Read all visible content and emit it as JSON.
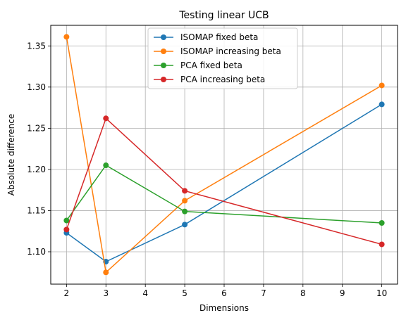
{
  "chart_data": {
    "type": "line",
    "title": "Testing linear UCB",
    "xlabel": "Dimensions",
    "ylabel": "Absolute difference",
    "x": [
      2,
      3,
      5,
      10
    ],
    "xlim": [
      1.6,
      10.4
    ],
    "ylim": [
      1.0607,
      1.375
    ],
    "xticks": [
      2,
      3,
      4,
      5,
      6,
      7,
      8,
      9,
      10
    ],
    "yticks": [
      1.1,
      1.15,
      1.2,
      1.25,
      1.3,
      1.35
    ],
    "ytick_labels": [
      "1.10",
      "1.15",
      "1.20",
      "1.25",
      "1.30",
      "1.35"
    ],
    "grid": true,
    "legend_position": "top-center",
    "series": [
      {
        "name": "ISOMAP fixed beta",
        "color": "#1f77b4",
        "values": [
          1.123,
          1.088,
          1.133,
          1.279
        ]
      },
      {
        "name": "ISOMAP increasing beta",
        "color": "#ff7f0e",
        "values": [
          1.361,
          1.075,
          1.162,
          1.302
        ]
      },
      {
        "name": "PCA fixed beta",
        "color": "#2ca02c",
        "values": [
          1.138,
          1.205,
          1.149,
          1.135
        ]
      },
      {
        "name": "PCA increasing beta",
        "color": "#d62728",
        "values": [
          1.127,
          1.262,
          1.174,
          1.109
        ]
      }
    ]
  }
}
